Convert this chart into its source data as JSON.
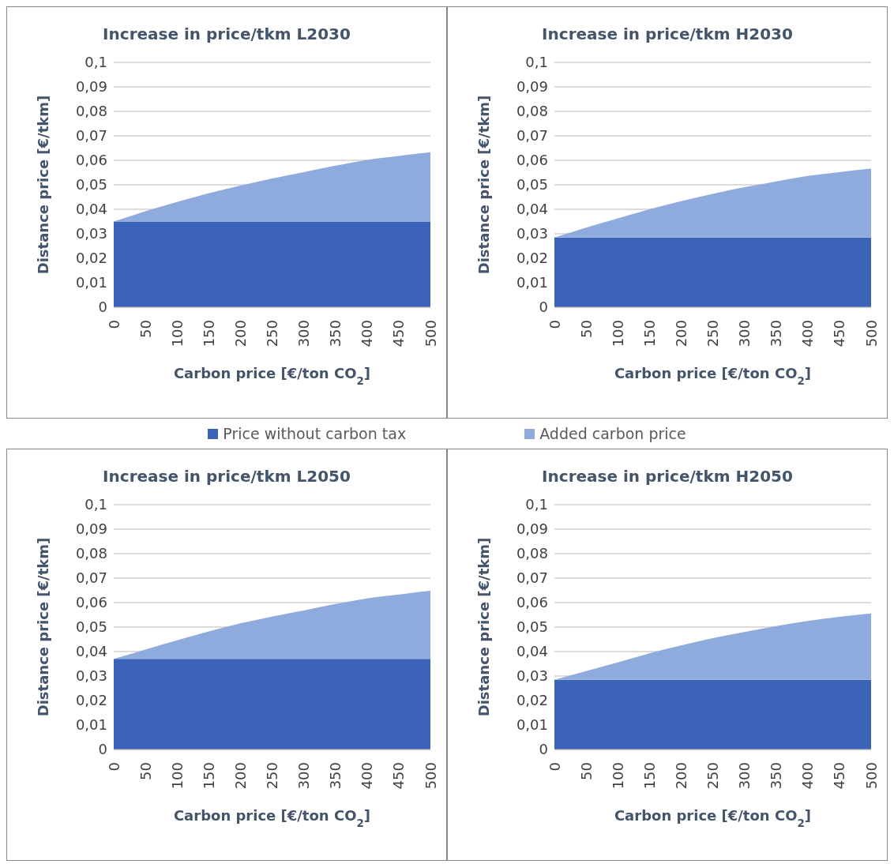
{
  "chart_data": [
    {
      "type": "area",
      "title": "Increase in price/tkm L2030",
      "xlabel": "Carbon price [€/ton CO$_{2}$]",
      "ylabel": "Distance price [€/tkm]",
      "stacked": true,
      "grid": "y",
      "legend": "bottom",
      "x": [
        0,
        50,
        100,
        150,
        200,
        250,
        300,
        350,
        400,
        450,
        500
      ],
      "xlim": [
        0,
        500
      ],
      "xticks": [
        0,
        50,
        100,
        150,
        200,
        250,
        300,
        350,
        400,
        450,
        500
      ],
      "ylim": [
        0,
        0.1
      ],
      "yticks": [
        {
          "value": 0,
          "label": "0"
        },
        {
          "value": 0.01,
          "label": "0,01"
        },
        {
          "value": 0.02,
          "label": "0,02"
        },
        {
          "value": 0.03,
          "label": "0,03"
        },
        {
          "value": 0.04,
          "label": "0,04"
        },
        {
          "value": 0.05,
          "label": "0,05"
        },
        {
          "value": 0.06,
          "label": "0,06"
        },
        {
          "value": 0.07,
          "label": "0,07"
        },
        {
          "value": 0.08,
          "label": "0,08"
        },
        {
          "value": 0.09,
          "label": "0,09"
        },
        {
          "value": 0.1,
          "label": "0,1"
        }
      ],
      "series": [
        {
          "name": "Price without carbon tax",
          "color": "#3b63b8",
          "values": [
            0.035,
            0.035,
            0.035,
            0.035,
            0.035,
            0.035,
            0.035,
            0.035,
            0.035,
            0.035,
            0.035
          ]
        },
        {
          "name": "Added carbon price",
          "color": "#8faadc",
          "values": [
            0,
            0.0042,
            0.008,
            0.0115,
            0.0147,
            0.0176,
            0.0202,
            0.0228,
            0.0252,
            0.0268,
            0.0283
          ]
        }
      ]
    },
    {
      "type": "area",
      "title": "Increase in price/tkm H2030",
      "xlabel": "Carbon price [€/ton CO$_{2}$]",
      "ylabel": "Distance price [€/tkm]",
      "stacked": true,
      "grid": "y",
      "x": [
        0,
        50,
        100,
        150,
        200,
        250,
        300,
        350,
        400,
        450,
        500
      ],
      "xlim": [
        0,
        500
      ],
      "xticks": [
        0,
        50,
        100,
        150,
        200,
        250,
        300,
        350,
        400,
        450,
        500
      ],
      "ylim": [
        0,
        0.1
      ],
      "yticks": [
        {
          "value": 0,
          "label": "0"
        },
        {
          "value": 0.01,
          "label": "0,01"
        },
        {
          "value": 0.02,
          "label": "0,02"
        },
        {
          "value": 0.03,
          "label": "0,03"
        },
        {
          "value": 0.04,
          "label": "0,04"
        },
        {
          "value": 0.05,
          "label": "0,05"
        },
        {
          "value": 0.06,
          "label": "0,06"
        },
        {
          "value": 0.07,
          "label": "0,07"
        },
        {
          "value": 0.08,
          "label": "0,08"
        },
        {
          "value": 0.09,
          "label": "0,09"
        },
        {
          "value": 0.1,
          "label": "0,1"
        }
      ],
      "series": [
        {
          "color": "#3b63b8",
          "values": [
            0.0285,
            0.0285,
            0.0285,
            0.0285,
            0.0285,
            0.0285,
            0.0285,
            0.0285,
            0.0285,
            0.0285,
            0.0285
          ]
        },
        {
          "color": "#8faadc",
          "values": [
            0,
            0.004,
            0.0078,
            0.0115,
            0.0148,
            0.0178,
            0.0205,
            0.0229,
            0.0251,
            0.0267,
            0.0281
          ]
        }
      ]
    },
    {
      "type": "area",
      "title": "Increase in price/tkm L2050",
      "xlabel": "Carbon price [€/ton CO$_{2}$]",
      "ylabel": "Distance price [€/tkm]",
      "stacked": true,
      "grid": "y",
      "x": [
        0,
        50,
        100,
        150,
        200,
        250,
        300,
        350,
        400,
        450,
        500
      ],
      "xlim": [
        0,
        500
      ],
      "xticks": [
        0,
        50,
        100,
        150,
        200,
        250,
        300,
        350,
        400,
        450,
        500
      ],
      "ylim": [
        0,
        0.1
      ],
      "yticks": [
        {
          "value": 0,
          "label": "0"
        },
        {
          "value": 0.01,
          "label": "0,01"
        },
        {
          "value": 0.02,
          "label": "0,02"
        },
        {
          "value": 0.03,
          "label": "0,03"
        },
        {
          "value": 0.04,
          "label": "0,04"
        },
        {
          "value": 0.05,
          "label": "0,05"
        },
        {
          "value": 0.06,
          "label": "0,06"
        },
        {
          "value": 0.07,
          "label": "0,07"
        },
        {
          "value": 0.08,
          "label": "0,08"
        },
        {
          "value": 0.09,
          "label": "0,09"
        },
        {
          "value": 0.1,
          "label": "0,1"
        }
      ],
      "series": [
        {
          "color": "#3b63b8",
          "values": [
            0.037,
            0.037,
            0.037,
            0.037,
            0.037,
            0.037,
            0.037,
            0.037,
            0.037,
            0.037,
            0.037
          ]
        },
        {
          "color": "#8faadc",
          "values": [
            0,
            0.0038,
            0.0076,
            0.0112,
            0.0145,
            0.0173,
            0.0198,
            0.0224,
            0.0247,
            0.0263,
            0.0278
          ]
        }
      ]
    },
    {
      "type": "area",
      "title": "Increase in price/tkm H2050",
      "xlabel": "Carbon price [€/ton CO$_{2}$]",
      "ylabel": "Distance price [€/tkm]",
      "stacked": true,
      "grid": "y",
      "x": [
        0,
        50,
        100,
        150,
        200,
        250,
        300,
        350,
        400,
        450,
        500
      ],
      "xlim": [
        0,
        500
      ],
      "xticks": [
        0,
        50,
        100,
        150,
        200,
        250,
        300,
        350,
        400,
        450,
        500
      ],
      "ylim": [
        0,
        0.1
      ],
      "yticks": [
        {
          "value": 0,
          "label": "0"
        },
        {
          "value": 0.01,
          "label": "0,01"
        },
        {
          "value": 0.02,
          "label": "0,02"
        },
        {
          "value": 0.03,
          "label": "0,03"
        },
        {
          "value": 0.04,
          "label": "0,04"
        },
        {
          "value": 0.05,
          "label": "0,05"
        },
        {
          "value": 0.06,
          "label": "0,06"
        },
        {
          "value": 0.07,
          "label": "0,07"
        },
        {
          "value": 0.08,
          "label": "0,08"
        },
        {
          "value": 0.09,
          "label": "0,09"
        },
        {
          "value": 0.1,
          "label": "0,1"
        }
      ],
      "series": [
        {
          "color": "#3b63b8",
          "values": [
            0.0285,
            0.0285,
            0.0285,
            0.0285,
            0.0285,
            0.0285,
            0.0285,
            0.0285,
            0.0285,
            0.0285,
            0.0285
          ]
        },
        {
          "color": "#8faadc",
          "values": [
            0,
            0.0035,
            0.0071,
            0.0108,
            0.014,
            0.017,
            0.0195,
            0.0219,
            0.024,
            0.0257,
            0.0271
          ]
        }
      ]
    }
  ]
}
